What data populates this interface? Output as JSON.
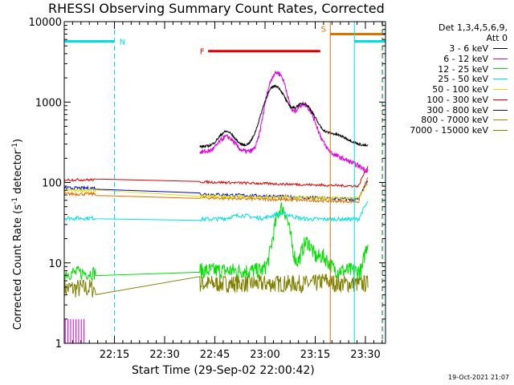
{
  "chart_data": {
    "type": "line",
    "title": "RHESSI Observing Summary Count Rates, Corrected",
    "xlabel": "Start Time (29-Sep-02 22:00:42)",
    "ylabel_main": "Corrected Count Rate (s",
    "ylabel_sup1": "-1",
    "ylabel_mid": " detector",
    "ylabel_sup2": "-1",
    "ylabel_end": ")",
    "yscale": "log",
    "ylim": [
      1,
      10000
    ],
    "xlim_minutes": [
      0,
      96
    ],
    "x_ticks": [
      {
        "t": 15,
        "label": "22:15"
      },
      {
        "t": 30,
        "label": "22:30"
      },
      {
        "t": 45,
        "label": "22:45"
      },
      {
        "t": 60,
        "label": "23:00"
      },
      {
        "t": 75,
        "label": "23:15"
      },
      {
        "t": 90,
        "label": "23:30"
      }
    ],
    "y_ticks": [
      {
        "v": 1,
        "label": "1"
      },
      {
        "v": 10,
        "label": "10"
      },
      {
        "v": 100,
        "label": "100"
      },
      {
        "v": 1000,
        "label": "1000"
      },
      {
        "v": 10000,
        "label": "10000"
      }
    ],
    "legend_header": [
      "Det 1,3,4,5,6,9,",
      "Att 0"
    ],
    "series": [
      {
        "name": "3 - 6 keV",
        "color": "#000000"
      },
      {
        "name": "6 - 12 keV",
        "color": "#e000e0"
      },
      {
        "name": "12 - 25 keV",
        "color": "#00e000"
      },
      {
        "name": "25 - 50 keV",
        "color": "#00e0e0"
      },
      {
        "name": "50 - 100 keV",
        "color": "#e0e000"
      },
      {
        "name": "100 - 300 keV",
        "color": "#e00000"
      },
      {
        "name": "300 - 800 keV",
        "color": "#0000e0"
      },
      {
        "name": "800 - 7000 keV",
        "color": "#e07000"
      },
      {
        "name": "7000 - 15000 keV",
        "color": "#808000"
      }
    ],
    "annotations": [
      {
        "label": "N",
        "color": "#00e0e0"
      },
      {
        "label": "F",
        "color": "#e00000"
      },
      {
        "label": "S",
        "color": "#e07000"
      }
    ]
  },
  "timestamp": "19-Oct-2021 21:07"
}
